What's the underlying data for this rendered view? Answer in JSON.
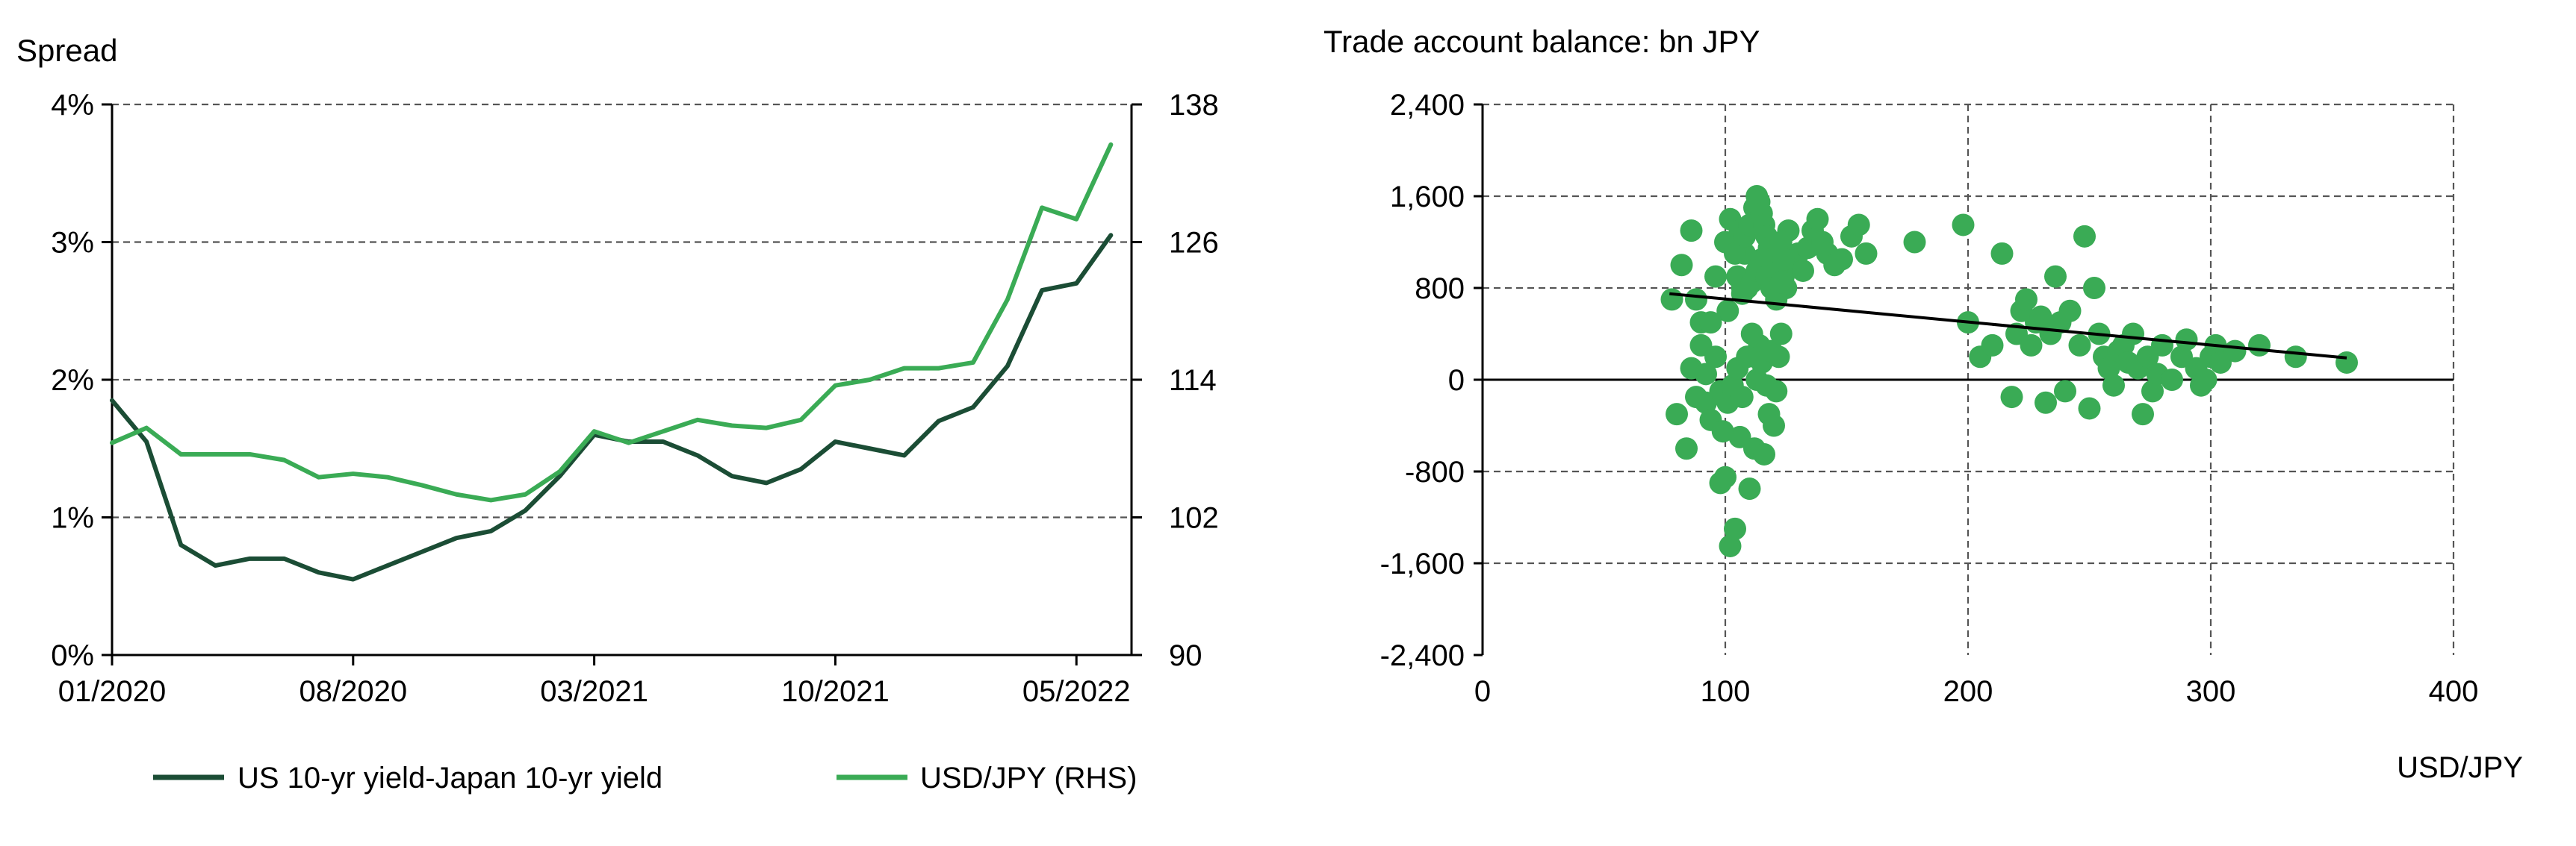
{
  "chart_data": [
    {
      "type": "line",
      "title": "Spread",
      "xlabel": "",
      "ylabel": "Spread",
      "x_tick_labels": [
        "01/2020",
        "08/2020",
        "03/2021",
        "10/2021",
        "05/2022"
      ],
      "y_left_tick_labels": [
        "0%",
        "1%",
        "2%",
        "3%",
        "4%"
      ],
      "y_right_tick_labels": [
        "90",
        "102",
        "114",
        "126",
        "138"
      ],
      "ylim_left": [
        0,
        4
      ],
      "ylim_right": [
        90,
        138
      ],
      "xlim": [
        "2020-01",
        "2022-06"
      ],
      "grid": true,
      "legend_position": "bottom",
      "series": [
        {
          "name": "US 10-yr yield-Japan 10-yr yield",
          "axis": "left",
          "color": "#1b4d35",
          "x": [
            "2020-01",
            "2020-02",
            "2020-03",
            "2020-04",
            "2020-05",
            "2020-06",
            "2020-07",
            "2020-08",
            "2020-09",
            "2020-10",
            "2020-11",
            "2020-12",
            "2021-01",
            "2021-02",
            "2021-03",
            "2021-04",
            "2021-05",
            "2021-06",
            "2021-07",
            "2021-08",
            "2021-09",
            "2021-10",
            "2021-11",
            "2021-12",
            "2022-01",
            "2022-02",
            "2022-03",
            "2022-04",
            "2022-05",
            "2022-06"
          ],
          "values": [
            1.85,
            1.55,
            0.8,
            0.65,
            0.7,
            0.7,
            0.6,
            0.55,
            0.65,
            0.75,
            0.85,
            0.9,
            1.05,
            1.3,
            1.6,
            1.55,
            1.55,
            1.45,
            1.3,
            1.25,
            1.35,
            1.55,
            1.5,
            1.45,
            1.7,
            1.8,
            2.1,
            2.65,
            2.7,
            3.05
          ]
        },
        {
          "name": "USD/JPY (RHS)",
          "axis": "right",
          "color": "#3aab55",
          "x": [
            "2020-01",
            "2020-02",
            "2020-03",
            "2020-04",
            "2020-05",
            "2020-06",
            "2020-07",
            "2020-08",
            "2020-09",
            "2020-10",
            "2020-11",
            "2020-12",
            "2021-01",
            "2021-02",
            "2021-03",
            "2021-04",
            "2021-05",
            "2021-06",
            "2021-07",
            "2021-08",
            "2021-09",
            "2021-10",
            "2021-11",
            "2021-12",
            "2022-01",
            "2022-02",
            "2022-03",
            "2022-04",
            "2022-05",
            "2022-06"
          ],
          "values": [
            108.5,
            109.8,
            107.5,
            107.5,
            107.5,
            107.0,
            105.5,
            105.8,
            105.5,
            104.8,
            104.0,
            103.5,
            104.0,
            106.0,
            109.5,
            108.5,
            109.5,
            110.5,
            110.0,
            109.8,
            110.5,
            113.5,
            114.0,
            115.0,
            115.0,
            115.5,
            121.0,
            129.0,
            128.0,
            134.5
          ]
        }
      ]
    },
    {
      "type": "scatter",
      "title": "Trade account balance: bn JPY",
      "xlabel": "USD/JPY",
      "ylabel": "Trade account balance: bn JPY",
      "x_tick_labels": [
        "0",
        "100",
        "200",
        "300",
        "400"
      ],
      "y_tick_labels": [
        "2,400",
        "1,600",
        "800",
        "0",
        "-800",
        "-1,600",
        "-2,400"
      ],
      "xlim": [
        0,
        400
      ],
      "ylim": [
        -2400,
        2400
      ],
      "grid": true,
      "trendline": {
        "x": [
          77,
          356
        ],
        "y": [
          750,
          190
        ],
        "color": "#000000"
      },
      "point_color": "#3aab55",
      "points": [
        [
          78,
          700
        ],
        [
          80,
          -300
        ],
        [
          82,
          1000
        ],
        [
          84,
          -600
        ],
        [
          86,
          1300
        ],
        [
          88,
          700
        ],
        [
          90,
          500
        ],
        [
          92,
          -200
        ],
        [
          94,
          -350
        ],
        [
          96,
          900
        ],
        [
          98,
          -900
        ],
        [
          100,
          -850
        ],
        [
          101,
          600
        ],
        [
          102,
          -1450
        ],
        [
          104,
          -1300
        ],
        [
          106,
          -500
        ],
        [
          107,
          800
        ],
        [
          108,
          1100
        ],
        [
          110,
          -950
        ],
        [
          112,
          -600
        ],
        [
          114,
          300
        ],
        [
          116,
          -650
        ],
        [
          118,
          -300
        ],
        [
          120,
          -400
        ],
        [
          122,
          200
        ],
        [
          124,
          900
        ],
        [
          126,
          1300
        ],
        [
          128,
          1050
        ],
        [
          130,
          1100
        ],
        [
          132,
          950
        ],
        [
          134,
          1150
        ],
        [
          136,
          1300
        ],
        [
          138,
          1400
        ],
        [
          140,
          1200
        ],
        [
          142,
          1100
        ],
        [
          145,
          1000
        ],
        [
          148,
          1050
        ],
        [
          152,
          1250
        ],
        [
          155,
          1350
        ],
        [
          158,
          1100
        ],
        [
          100,
          1200
        ],
        [
          102,
          1400
        ],
        [
          104,
          1100
        ],
        [
          106,
          1300
        ],
        [
          108,
          1250
        ],
        [
          110,
          1350
        ],
        [
          112,
          1500
        ],
        [
          113,
          1600
        ],
        [
          114,
          1550
        ],
        [
          115,
          1450
        ],
        [
          116,
          1350
        ],
        [
          117,
          1250
        ],
        [
          118,
          1150
        ],
        [
          119,
          1050
        ],
        [
          120,
          1000
        ],
        [
          121,
          950
        ],
        [
          122,
          1100
        ],
        [
          123,
          1200
        ],
        [
          124,
          1050
        ],
        [
          125,
          800
        ],
        [
          105,
          900
        ],
        [
          107,
          750
        ],
        [
          109,
          800
        ],
        [
          111,
          850
        ],
        [
          113,
          950
        ],
        [
          115,
          1050
        ],
        [
          117,
          900
        ],
        [
          119,
          800
        ],
        [
          121,
          700
        ],
        [
          123,
          850
        ],
        [
          86,
          100
        ],
        [
          88,
          -150
        ],
        [
          90,
          300
        ],
        [
          92,
          50
        ],
        [
          94,
          500
        ],
        [
          96,
          200
        ],
        [
          98,
          -100
        ],
        [
          99,
          -450
        ],
        [
          101,
          -200
        ],
        [
          103,
          -50
        ],
        [
          105,
          100
        ],
        [
          107,
          -150
        ],
        [
          109,
          200
        ],
        [
          111,
          400
        ],
        [
          113,
          0
        ],
        [
          115,
          150
        ],
        [
          117,
          -50
        ],
        [
          119,
          250
        ],
        [
          121,
          -100
        ],
        [
          123,
          400
        ],
        [
          178,
          1200
        ],
        [
          198,
          1350
        ],
        [
          200,
          500
        ],
        [
          205,
          200
        ],
        [
          210,
          300
        ],
        [
          214,
          1100
        ],
        [
          218,
          -150
        ],
        [
          220,
          400
        ],
        [
          222,
          600
        ],
        [
          224,
          700
        ],
        [
          226,
          300
        ],
        [
          228,
          500
        ],
        [
          230,
          550
        ],
        [
          232,
          -200
        ],
        [
          234,
          400
        ],
        [
          236,
          900
        ],
        [
          238,
          500
        ],
        [
          240,
          -100
        ],
        [
          242,
          600
        ],
        [
          246,
          300
        ],
        [
          248,
          1250
        ],
        [
          250,
          -250
        ],
        [
          252,
          800
        ],
        [
          254,
          400
        ],
        [
          256,
          200
        ],
        [
          258,
          100
        ],
        [
          260,
          -50
        ],
        [
          262,
          250
        ],
        [
          264,
          300
        ],
        [
          266,
          150
        ],
        [
          268,
          400
        ],
        [
          270,
          100
        ],
        [
          272,
          -300
        ],
        [
          274,
          200
        ],
        [
          276,
          -100
        ],
        [
          278,
          50
        ],
        [
          280,
          300
        ],
        [
          284,
          0
        ],
        [
          288,
          200
        ],
        [
          290,
          350
        ],
        [
          294,
          100
        ],
        [
          296,
          -50
        ],
        [
          298,
          0
        ],
        [
          300,
          200
        ],
        [
          302,
          300
        ],
        [
          304,
          150
        ],
        [
          310,
          250
        ],
        [
          320,
          300
        ],
        [
          335,
          200
        ],
        [
          356,
          150
        ]
      ]
    }
  ],
  "left_chart": {
    "axis_title": "Spread",
    "legend": [
      "US 10-yr yield-Japan 10-yr yield",
      "USD/JPY (RHS)"
    ]
  },
  "right_chart": {
    "title": "Trade account balance: bn JPY",
    "x_axis_label": "USD/JPY"
  },
  "colors": {
    "dark_green": "#1b4d35",
    "light_green": "#3aab55"
  }
}
